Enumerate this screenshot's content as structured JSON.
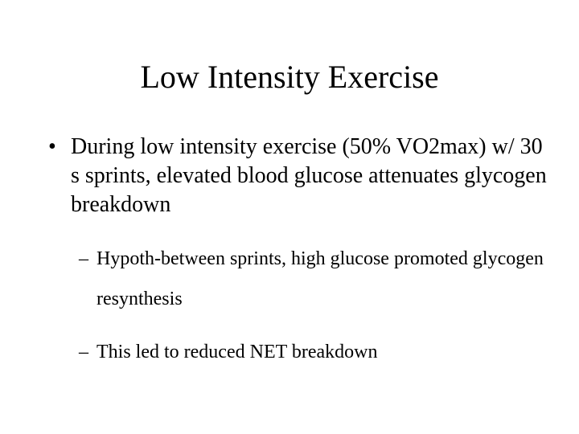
{
  "slide": {
    "title": "Low Intensity Exercise",
    "bullet_marker": "•",
    "sub_marker": "–",
    "bullets": [
      {
        "text": "During low intensity exercise (50% VO2max) w/ 30 s sprints, elevated blood glucose attenuates glycogen breakdown"
      }
    ],
    "sub_bullets": [
      {
        "text": "Hypoth-between sprints, high glucose promoted glycogen resynthesis"
      },
      {
        "text": "This led to reduced NET breakdown"
      }
    ]
  }
}
